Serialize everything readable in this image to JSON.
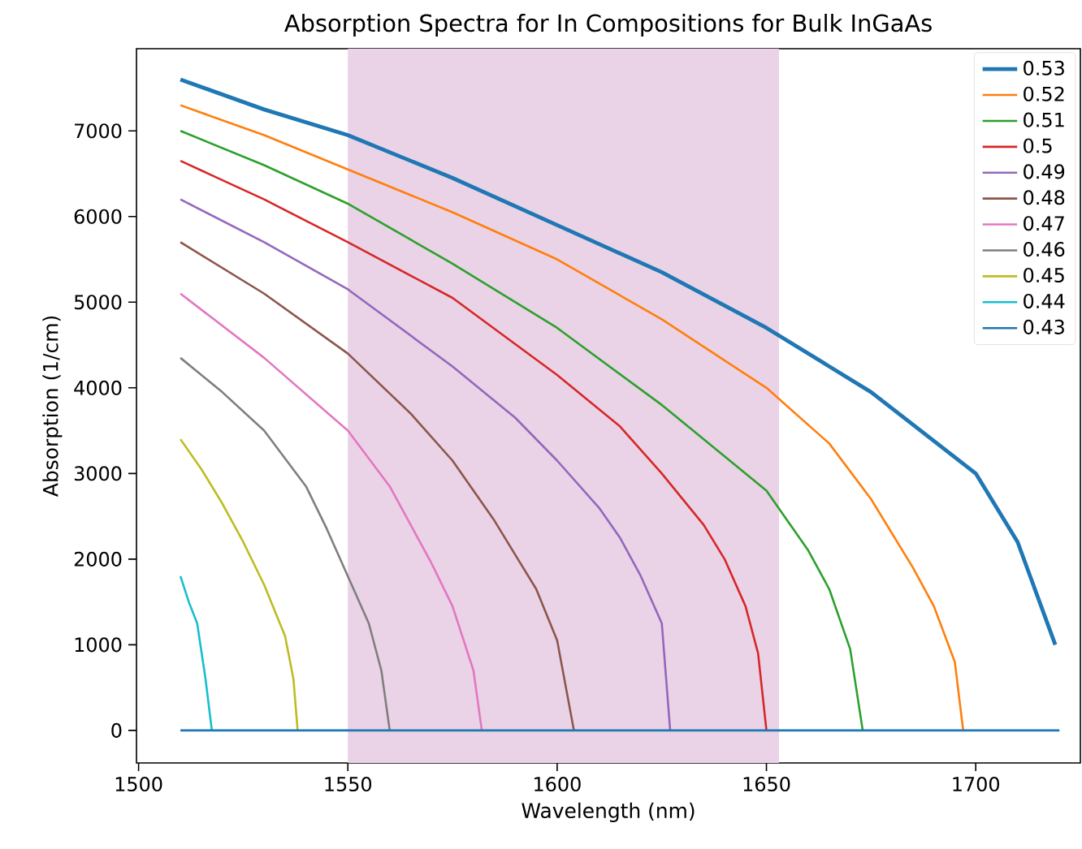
{
  "chart_data": {
    "type": "line",
    "title": "Absorption Spectra for In Compositions for Bulk InGaAs",
    "xlabel": "Wavelength (nm)",
    "ylabel": "Absorption (1/cm)",
    "xlim": [
      1499.5,
      1725
    ],
    "ylim": [
      -380,
      7960
    ],
    "xticks": [
      1500,
      1550,
      1600,
      1650,
      1700
    ],
    "yticks": [
      0,
      1000,
      2000,
      3000,
      4000,
      5000,
      6000,
      7000
    ],
    "grid": false,
    "legend": "top right",
    "marker": "none",
    "line_style": "solid",
    "bands": [
      {
        "axis": "x",
        "from": 1550,
        "to": 1653,
        "color": "#ead3e6"
      }
    ],
    "series": [
      {
        "name": "0.53",
        "color": "#1f77b4",
        "x": [
          1510,
          1530,
          1550,
          1575,
          1600,
          1625,
          1650,
          1675,
          1700,
          1710,
          1719
        ],
        "values": [
          7600,
          7250,
          6950,
          6450,
          5900,
          5350,
          4700,
          3950,
          3000,
          2200,
          1000
        ]
      },
      {
        "name": "0.52",
        "color": "#ff7f0e",
        "x": [
          1510,
          1530,
          1550,
          1575,
          1600,
          1625,
          1650,
          1665,
          1675,
          1685,
          1690,
          1695,
          1697
        ],
        "values": [
          7300,
          6950,
          6550,
          6050,
          5500,
          4800,
          4000,
          3350,
          2700,
          1900,
          1450,
          800,
          0
        ]
      },
      {
        "name": "0.51",
        "color": "#2ca02c",
        "x": [
          1510,
          1530,
          1550,
          1575,
          1600,
          1625,
          1640,
          1650,
          1660,
          1665,
          1670,
          1673
        ],
        "values": [
          7000,
          6600,
          6150,
          5450,
          4700,
          3800,
          3200,
          2800,
          2100,
          1650,
          950,
          0
        ]
      },
      {
        "name": "0.5",
        "color": "#d62728",
        "x": [
          1510,
          1530,
          1550,
          1575,
          1600,
          1615,
          1625,
          1635,
          1640,
          1645,
          1648,
          1650
        ],
        "values": [
          6650,
          6200,
          5700,
          5050,
          4150,
          3550,
          3000,
          2400,
          2000,
          1450,
          900,
          0
        ]
      },
      {
        "name": "0.49",
        "color": "#9467bd",
        "x": [
          1510,
          1530,
          1550,
          1575,
          1590,
          1600,
          1610,
          1615,
          1620,
          1625,
          1627
        ],
        "values": [
          6200,
          5700,
          5150,
          4250,
          3650,
          3150,
          2600,
          2250,
          1800,
          1250,
          0
        ]
      },
      {
        "name": "0.48",
        "color": "#8c564b",
        "x": [
          1510,
          1530,
          1550,
          1565,
          1575,
          1585,
          1590,
          1595,
          1600,
          1604
        ],
        "values": [
          5700,
          5100,
          4400,
          3700,
          3150,
          2450,
          2050,
          1650,
          1050,
          0
        ]
      },
      {
        "name": "0.47",
        "color": "#e377c2",
        "x": [
          1510,
          1530,
          1550,
          1560,
          1565,
          1570,
          1575,
          1580,
          1582
        ],
        "values": [
          5100,
          4350,
          3500,
          2850,
          2400,
          1950,
          1450,
          700,
          0
        ]
      },
      {
        "name": "0.46",
        "color": "#7f7f7f",
        "x": [
          1510,
          1520,
          1530,
          1540,
          1545,
          1550,
          1555,
          1558,
          1560
        ],
        "values": [
          4350,
          3950,
          3500,
          2850,
          2350,
          1800,
          1250,
          700,
          0
        ]
      },
      {
        "name": "0.45",
        "color": "#bcbd22",
        "x": [
          1510,
          1515,
          1520,
          1525,
          1530,
          1535,
          1537,
          1538
        ],
        "values": [
          3400,
          3050,
          2650,
          2200,
          1700,
          1100,
          600,
          0
        ]
      },
      {
        "name": "0.44",
        "color": "#17becf",
        "x": [
          1510,
          1512,
          1514,
          1516,
          1517.5
        ],
        "values": [
          1800,
          1500,
          1250,
          600,
          0
        ]
      },
      {
        "name": "0.43",
        "color": "#1f77b4",
        "x": [
          1510,
          1720
        ],
        "values": [
          0,
          0
        ]
      }
    ]
  }
}
